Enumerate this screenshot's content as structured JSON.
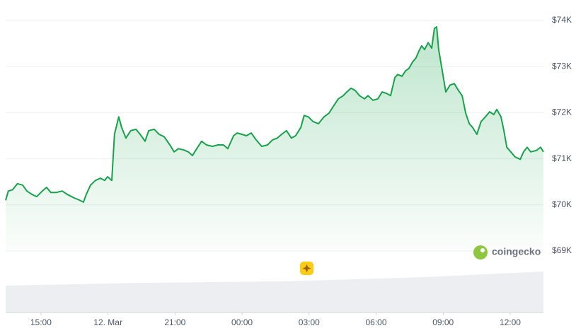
{
  "chart_data": {
    "type": "area",
    "color": "#16a34a",
    "watermark": "coingecko",
    "x": [
      -1.58,
      -1.46,
      -1.27,
      -1.05,
      -0.82,
      -0.63,
      -0.41,
      -0.19,
      0.06,
      0.25,
      0.44,
      0.7,
      0.95,
      1.17,
      1.49,
      1.65,
      1.9,
      2.03,
      2.22,
      2.44,
      2.66,
      2.85,
      2.98,
      3.17,
      3.29,
      3.48,
      3.61,
      3.8,
      4.02,
      4.25,
      4.44,
      4.66,
      4.82,
      5.07,
      5.29,
      5.51,
      5.77,
      5.96,
      6.15,
      6.4,
      6.59,
      6.78,
      6.97,
      7.19,
      7.41,
      7.67,
      7.92,
      8.17,
      8.36,
      8.62,
      8.78,
      9.0,
      9.19,
      9.41,
      9.63,
      9.88,
      10.14,
      10.36,
      10.58,
      10.77,
      10.99,
      11.21,
      11.4,
      11.63,
      11.78,
      11.97,
      12.17,
      12.42,
      12.67,
      12.89,
      13.05,
      13.31,
      13.53,
      13.69,
      13.88,
      14.07,
      14.26,
      14.48,
      14.64,
      14.86,
      15.08,
      15.27,
      15.46,
      15.65,
      15.84,
      15.97,
      16.16,
      16.32,
      16.47,
      16.63,
      16.79,
      16.92,
      17.04,
      17.17,
      17.33,
      17.49,
      17.61,
      17.71,
      17.8,
      17.96,
      18.12,
      18.31,
      18.5,
      18.69,
      18.85,
      19.01,
      19.17,
      19.32,
      19.51,
      19.7,
      19.89,
      20.08,
      20.27,
      20.4,
      20.59,
      20.72,
      20.85,
      21.03,
      21.22,
      21.45,
      21.6,
      21.76,
      21.92,
      22.17,
      22.36,
      22.49
    ],
    "values": [
      70100,
      70300,
      70330,
      70460,
      70430,
      70300,
      70230,
      70180,
      70300,
      70380,
      70270,
      70270,
      70300,
      70230,
      70150,
      70120,
      70060,
      70230,
      70430,
      70530,
      70580,
      70530,
      70610,
      70530,
      71530,
      71910,
      71680,
      71450,
      71610,
      71640,
      71530,
      71380,
      71610,
      71640,
      71530,
      71480,
      71300,
      71150,
      71220,
      71190,
      71150,
      71070,
      71220,
      71380,
      71300,
      71270,
      71300,
      71300,
      71220,
      71500,
      71560,
      71530,
      71500,
      71560,
      71410,
      71270,
      71300,
      71410,
      71450,
      71530,
      71610,
      71450,
      71500,
      71680,
      71940,
      71910,
      71810,
      71760,
      71910,
      71990,
      72110,
      72300,
      72370,
      72450,
      72530,
      72480,
      72370,
      72300,
      72370,
      72270,
      72300,
      72450,
      72420,
      72370,
      72760,
      72830,
      72790,
      72910,
      72960,
      73100,
      73190,
      73340,
      73450,
      73370,
      73520,
      73400,
      73830,
      73860,
      73370,
      72910,
      72450,
      72600,
      72630,
      72480,
      72370,
      71990,
      71760,
      71680,
      71530,
      71810,
      71910,
      72020,
      71960,
      72070,
      71910,
      71610,
      71250,
      71150,
      71040,
      70990,
      71150,
      71250,
      71150,
      71180,
      71250,
      71150
    ],
    "xlim": [
      -1.58,
      22.49
    ],
    "xticks": [
      {
        "value": 0,
        "label": "15:00"
      },
      {
        "value": 3,
        "label": "12. Mar"
      },
      {
        "value": 6,
        "label": "21:00"
      },
      {
        "value": 9,
        "label": "00:00"
      },
      {
        "value": 12,
        "label": "03:00"
      },
      {
        "value": 15,
        "label": "06:00"
      },
      {
        "value": 18,
        "label": "09:00"
      },
      {
        "value": 21,
        "label": "12:00"
      }
    ],
    "ylim": [
      69000,
      74000
    ],
    "yticks": [
      {
        "value": 69000,
        "label": "$69K"
      },
      {
        "value": 70000,
        "label": "$70K"
      },
      {
        "value": 71000,
        "label": "$71K"
      },
      {
        "value": 72000,
        "label": "$72K"
      },
      {
        "value": 73000,
        "label": "$73K"
      },
      {
        "value": 74000,
        "label": "$74K"
      }
    ],
    "grid": true
  }
}
